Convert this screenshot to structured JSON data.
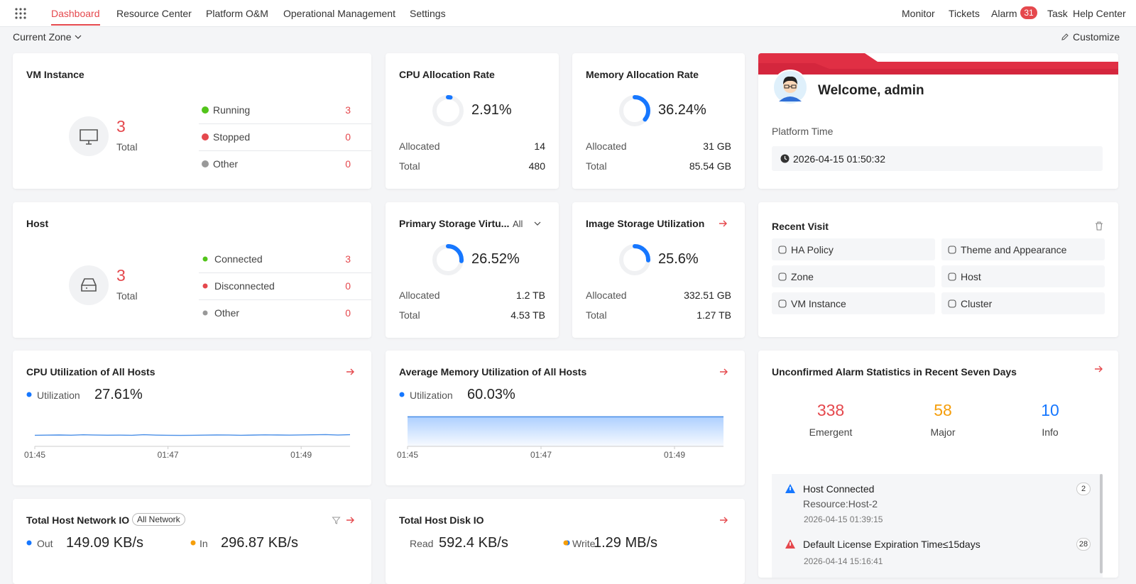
{
  "nav": {
    "menu": [
      "Dashboard",
      "Resource Center",
      "Platform O&M",
      "Operational Management",
      "Settings"
    ],
    "right": [
      "Monitor",
      "Tickets",
      "Alarm",
      "Task",
      "Help Center"
    ],
    "alarm_badge": "31"
  },
  "toolbar": {
    "zone": "Current Zone",
    "customize": "Customize"
  },
  "vm": {
    "title": "VM Instance",
    "total": 3,
    "total_label": "Total",
    "rows": [
      {
        "label": "Running",
        "value": 3,
        "color": "#52c41a"
      },
      {
        "label": "Stopped",
        "value": 0,
        "color": "#e5484d"
      },
      {
        "label": "Other",
        "value": 0,
        "color": "#999999"
      }
    ]
  },
  "host": {
    "title": "Host",
    "total": 3,
    "total_label": "Total",
    "rows": [
      {
        "label": "Connected",
        "value": 3,
        "color": "#52c41a"
      },
      {
        "label": "Disconnected",
        "value": 0,
        "color": "#e5484d"
      },
      {
        "label": "Other",
        "value": 0,
        "color": "#999999"
      }
    ]
  },
  "cpu_alloc": {
    "title": "CPU Allocation Rate",
    "rate": {
      "value": 2.91,
      "label": "2.91%"
    },
    "rows": [
      {
        "label": "Allocated",
        "value": "14"
      },
      {
        "label": "Total",
        "value": "480"
      }
    ]
  },
  "mem_alloc": {
    "title": "Memory Allocation Rate",
    "rate": {
      "value": 36.24,
      "label": "36.24%"
    },
    "rows": [
      {
        "label": "Allocated",
        "value": "31 GB"
      },
      {
        "label": "Total",
        "value": "85.54 GB"
      }
    ]
  },
  "primary_storage": {
    "title": "Primary Storage Virtu...",
    "filter": "All",
    "rate": {
      "value": 26.52,
      "label": "26.52%"
    },
    "rows": [
      {
        "label": "Allocated",
        "value": "1.2 TB"
      },
      {
        "label": "Total",
        "value": "4.53 TB"
      }
    ]
  },
  "image_storage": {
    "title": "Image Storage Utilization",
    "rate": {
      "value": 25.6,
      "label": "25.6%"
    },
    "rows": [
      {
        "label": "Allocated",
        "value": "332.51 GB"
      },
      {
        "label": "Total",
        "value": "1.27 TB"
      }
    ]
  },
  "welcome": {
    "greeting": "Welcome, admin",
    "time_label": "Platform Time",
    "time": "2026-04-15 01:50:32"
  },
  "recent": {
    "title": "Recent Visit",
    "items": [
      "HA Policy",
      "Theme and Appearance",
      "Zone",
      "Host",
      "VM Instance",
      "Cluster"
    ]
  },
  "cpu_util": {
    "title": "CPU Utilization of All Hosts",
    "legend": "Utilization",
    "current": "27.61%",
    "x_ticks": [
      "01:45",
      "01:47",
      "01:49"
    ],
    "ylim": [
      0,
      75
    ],
    "values": [
      27.2,
      27.6,
      27.9,
      27.4,
      28.4,
      27.8,
      27.3,
      27.5,
      27.1,
      28.6,
      27.6,
      27.2,
      26.9,
      27.2,
      27.6,
      27.9,
      27.8,
      27.2,
      27.7,
      28.2,
      27.9,
      27.5,
      28.1,
      28.5,
      28.9,
      27.8,
      28.6
    ]
  },
  "mem_util": {
    "title": "Average Memory Utilization of All Hosts",
    "legend": "Utilization",
    "current": "60.03%",
    "x_ticks": [
      "01:45",
      "01:47",
      "01:49"
    ],
    "ylim": [
      0,
      62
    ],
    "values": [
      60.03,
      60.03,
      60.03,
      60.03,
      60.03,
      60.03,
      60.03,
      60.03,
      60.03,
      60.03
    ]
  },
  "alarm_stats": {
    "title": "Unconfirmed Alarm Statistics in Recent Seven Days",
    "counts": [
      {
        "label": "Emergent",
        "value": 338,
        "color": "#e5484d"
      },
      {
        "label": "Major",
        "value": 58,
        "color": "#f59e0b"
      },
      {
        "label": "Info",
        "value": 10,
        "color": "#1677ff"
      }
    ],
    "items": [
      {
        "title": "Host Connected",
        "resource": "Resource:Host-2",
        "time": "2026-04-15 01:39:15",
        "count": 2
      },
      {
        "title": "Default License Expiration Time≤15days",
        "time": "2026-04-14 15:16:41",
        "count": 28
      }
    ]
  },
  "net_io": {
    "title": "Total Host Network IO",
    "filter": "All Network",
    "legend": [
      {
        "name": "Out",
        "value": "149.09 KB/s",
        "color": "#1677ff"
      },
      {
        "name": "In",
        "value": "296.87 KB/s",
        "color": "#f59e0b"
      }
    ]
  },
  "disk_io": {
    "title": "Total Host Disk IO",
    "legend": [
      {
        "name": "Read",
        "value": "592.4 KB/s",
        "color": "#1677ff"
      },
      {
        "name": "Write",
        "value": "1.29 MB/s",
        "color": "#f59e0b"
      }
    ]
  }
}
